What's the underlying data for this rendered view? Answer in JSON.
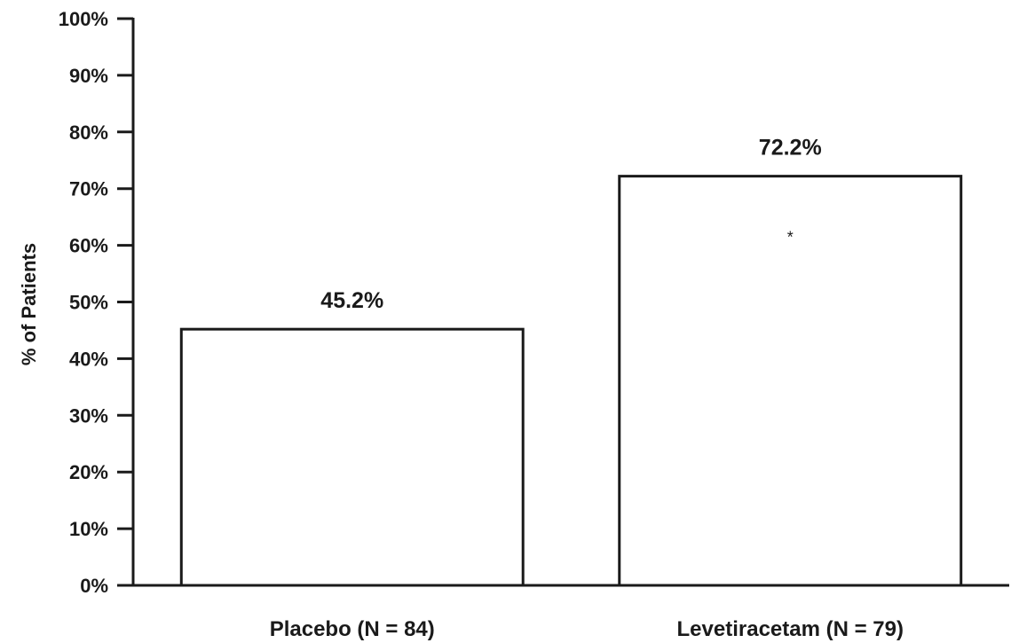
{
  "chart_data": {
    "type": "bar",
    "categories": [
      "Placebo (N = 84)",
      "Levetiracetam (N = 79)"
    ],
    "values": [
      45.2,
      72.2
    ],
    "value_labels": [
      "45.2%",
      "72.2%"
    ],
    "ylabel": "% of Patients",
    "ylim": [
      0,
      100
    ],
    "yticks": [
      "0%",
      "10%",
      "20%",
      "30%",
      "40%",
      "50%",
      "60%",
      "70%",
      "80%",
      "90%",
      "100%"
    ],
    "annotation": "*",
    "grid": false,
    "colors": {
      "bar_fill": "#ffffff",
      "bar_stroke": "#1a1a1a",
      "axis": "#1a1a1a"
    }
  }
}
